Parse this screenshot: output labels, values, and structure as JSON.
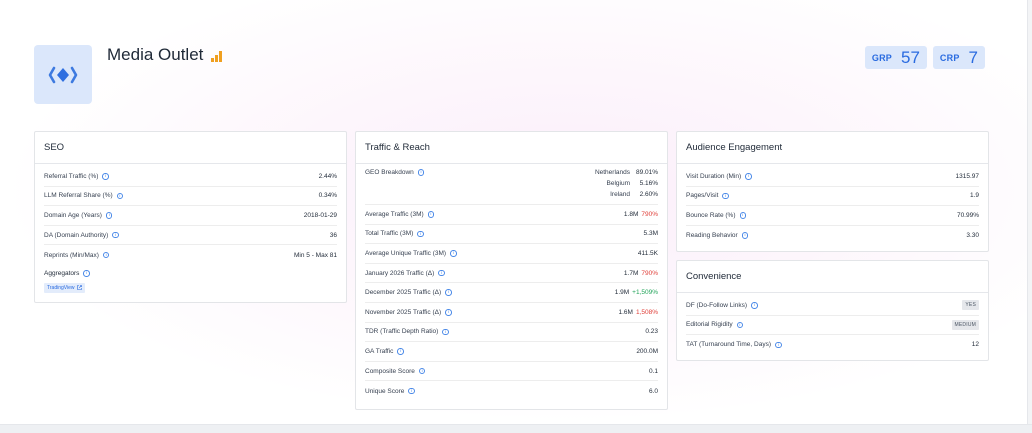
{
  "header": {
    "title": "Media Outlet",
    "logo_icon": "media-diamond-logo",
    "bars_icon": "signal-bars-icon",
    "badges": [
      {
        "label": "GRP",
        "value": "57"
      },
      {
        "label": "CRP",
        "value": "7"
      }
    ]
  },
  "seo": {
    "title": "SEO",
    "rows": [
      {
        "label": "Referral Traffic (%)",
        "value": "2.44%"
      },
      {
        "label": "LLM Referral Share (%)",
        "value": "0.34%"
      },
      {
        "label": "Domain Age (Years)",
        "value": "2018-01-29"
      },
      {
        "label": "DA (Domain Authority)",
        "value": "36"
      },
      {
        "label": "Reprints (Min/Max)",
        "value": "Min 5 - Max 81"
      }
    ],
    "aggregators": {
      "label": "Aggregators",
      "tag": "TradingView"
    }
  },
  "traffic": {
    "title": "Traffic & Reach",
    "geo": {
      "label": "GEO Breakdown",
      "items": [
        {
          "country": "Netherlands",
          "pct": "89.01%"
        },
        {
          "country": "Belgium",
          "pct": "5.16%"
        },
        {
          "country": "Ireland",
          "pct": "2.60%"
        }
      ]
    },
    "rows": [
      {
        "label": "Average Traffic (3M)",
        "value": "1.8M",
        "delta": "790%",
        "trend": "red"
      },
      {
        "label": "Total Traffic (3M)",
        "value": "5.3M",
        "delta": "",
        "trend": ""
      },
      {
        "label": "Average Unique Traffic (3M)",
        "value": "411.5K",
        "delta": "",
        "trend": ""
      },
      {
        "label": "January 2026 Traffic (Δ)",
        "value": "1.7M",
        "delta": "790%",
        "trend": "red"
      },
      {
        "label": "December 2025 Traffic (Δ)",
        "value": "1.9M",
        "delta": "+1,509%",
        "trend": "green"
      },
      {
        "label": "November 2025 Traffic (Δ)",
        "value": "1.6M",
        "delta": "1,508%",
        "trend": "red"
      },
      {
        "label": "TDR (Traffic Depth Ratio)",
        "value": "0.23",
        "delta": "",
        "trend": ""
      },
      {
        "label": "GA Traffic",
        "value": "200.0M",
        "delta": "",
        "trend": ""
      },
      {
        "label": "Composite Score",
        "value": "0.1",
        "delta": "",
        "trend": ""
      },
      {
        "label": "Unique Score",
        "value": "6.0",
        "delta": "",
        "trend": ""
      }
    ]
  },
  "engagement": {
    "title": "Audience Engagement",
    "rows": [
      {
        "label": "Visit Duration (Min)",
        "value": "1315.97"
      },
      {
        "label": "Pages/Visit",
        "value": "1.9"
      },
      {
        "label": "Bounce Rate (%)",
        "value": "70.99%"
      },
      {
        "label": "Reading Behavior",
        "value": "3.30"
      }
    ]
  },
  "convenience": {
    "title": "Convenience",
    "rows": [
      {
        "label": "DF (Do-Follow Links)",
        "value": "YES",
        "chip": true
      },
      {
        "label": "Editorial Rigidity",
        "value": "MEDIUM",
        "chip": true
      },
      {
        "label": "TAT (Turnaround Time, Days)",
        "value": "12",
        "chip": false
      }
    ]
  },
  "colors": {
    "accent": "#2a6be0",
    "badge_bg": "#dbe7fb",
    "negative": "#e0403a",
    "positive": "#22a45a",
    "bars": "#f0a020"
  }
}
